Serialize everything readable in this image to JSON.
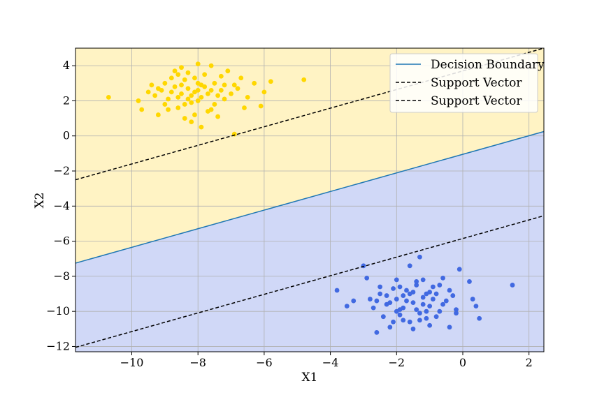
{
  "chart_data": {
    "type": "scatter",
    "xlabel": "X1",
    "ylabel": "X2",
    "xlim": [
      -11.7,
      2.45
    ],
    "ylim": [
      -12.3,
      5.0
    ],
    "xticks": [
      -10,
      -8,
      -6,
      -4,
      -2,
      0,
      2
    ],
    "yticks": [
      -12,
      -10,
      -8,
      -6,
      -4,
      -2,
      0,
      2,
      4
    ],
    "xtick_labels": [
      "−10",
      "−8",
      "−6",
      "−4",
      "−2",
      "0",
      "2"
    ],
    "ytick_labels": [
      "−12",
      "−10",
      "−8",
      "−6",
      "−4",
      "−2",
      "0",
      "2",
      "4"
    ],
    "grid": true,
    "legend_position": "top-right",
    "regions": [
      {
        "side": "above",
        "color": "#fff3c4"
      },
      {
        "side": "below",
        "color": "#d0d8f7"
      }
    ],
    "lines": [
      {
        "label": "Decision Boundary",
        "color": "#1f77b4",
        "style": "solid",
        "x": [
          -11.7,
          2.45
        ],
        "y": [
          -7.25,
          0.25
        ]
      },
      {
        "label": "Support Vector",
        "color": "#000000",
        "style": "dashed",
        "x": [
          -11.7,
          2.45
        ],
        "y": [
          -2.5,
          5.0
        ]
      },
      {
        "label": "Support Vector",
        "color": "#000000",
        "style": "dashed",
        "x": [
          -11.7,
          2.45
        ],
        "y": [
          -12.05,
          -4.55
        ]
      }
    ],
    "series": [
      {
        "color": "#ffd700",
        "points": [
          [
            -8.1,
            2.5
          ],
          [
            -8.3,
            2.7
          ],
          [
            -7.9,
            2.2
          ],
          [
            -8.0,
            3.0
          ],
          [
            -8.5,
            2.4
          ],
          [
            -7.6,
            2.6
          ],
          [
            -8.2,
            1.9
          ],
          [
            -8.7,
            2.8
          ],
          [
            -7.4,
            2.3
          ],
          [
            -8.0,
            2.0
          ],
          [
            -8.4,
            3.2
          ],
          [
            -7.8,
            3.5
          ],
          [
            -8.9,
            2.1
          ],
          [
            -9.1,
            2.6
          ],
          [
            -7.2,
            2.9
          ],
          [
            -8.6,
            1.6
          ],
          [
            -7.5,
            1.8
          ],
          [
            -8.3,
            3.6
          ],
          [
            -7.0,
            2.4
          ],
          [
            -9.3,
            2.3
          ],
          [
            -8.8,
            3.3
          ],
          [
            -7.7,
            1.4
          ],
          [
            -8.1,
            1.2
          ],
          [
            -9.0,
            1.8
          ],
          [
            -7.3,
            3.4
          ],
          [
            -8.5,
            3.9
          ],
          [
            -7.6,
            4.0
          ],
          [
            -6.8,
            2.7
          ],
          [
            -9.4,
            2.9
          ],
          [
            -8.2,
            0.8
          ],
          [
            -7.9,
            0.5
          ],
          [
            -6.5,
            2.2
          ],
          [
            -6.3,
            3.0
          ],
          [
            -6.6,
            1.6
          ],
          [
            -9.7,
            1.5
          ],
          [
            -9.2,
            1.2
          ],
          [
            -10.7,
            2.2
          ],
          [
            -5.8,
            3.1
          ],
          [
            -4.8,
            3.2
          ],
          [
            -6.9,
            0.1
          ],
          [
            -6.1,
            1.7
          ],
          [
            -8.0,
            4.1
          ],
          [
            -8.7,
            3.7
          ],
          [
            -9.5,
            2.5
          ],
          [
            -7.1,
            3.7
          ],
          [
            -6.7,
            3.3
          ],
          [
            -6.0,
            2.5
          ],
          [
            -7.4,
            1.1
          ],
          [
            -8.4,
            1.0
          ],
          [
            -9.8,
            2.0
          ],
          [
            -8.6,
            2.2
          ],
          [
            -7.8,
            2.8
          ],
          [
            -8.0,
            2.6
          ],
          [
            -8.2,
            2.3
          ],
          [
            -7.9,
            2.9
          ],
          [
            -8.1,
            3.3
          ],
          [
            -8.3,
            2.1
          ],
          [
            -7.7,
            2.4
          ],
          [
            -8.5,
            2.9
          ],
          [
            -7.5,
            3.0
          ],
          [
            -8.8,
            2.5
          ],
          [
            -9.0,
            3.0
          ],
          [
            -7.2,
            2.1
          ],
          [
            -8.9,
            1.5
          ],
          [
            -7.6,
            1.5
          ],
          [
            -8.4,
            1.8
          ],
          [
            -7.3,
            2.6
          ],
          [
            -9.2,
            2.7
          ],
          [
            -6.9,
            2.9
          ],
          [
            -8.6,
            3.5
          ]
        ]
      },
      {
        "color": "#4169e1",
        "points": [
          [
            -1.5,
            -9.5
          ],
          [
            -1.2,
            -9.2
          ],
          [
            -1.8,
            -9.8
          ],
          [
            -1.0,
            -9.7
          ],
          [
            -2.0,
            -9.3
          ],
          [
            -1.3,
            -10.1
          ],
          [
            -0.8,
            -9.0
          ],
          [
            -1.7,
            -8.8
          ],
          [
            -2.3,
            -9.6
          ],
          [
            -1.1,
            -10.4
          ],
          [
            -0.5,
            -9.4
          ],
          [
            -1.9,
            -10.2
          ],
          [
            -2.5,
            -9.0
          ],
          [
            -1.4,
            -8.5
          ],
          [
            -0.7,
            -10.0
          ],
          [
            -2.1,
            -8.7
          ],
          [
            -1.6,
            -10.6
          ],
          [
            -0.3,
            -9.1
          ],
          [
            -2.7,
            -9.8
          ],
          [
            -1.2,
            -8.2
          ],
          [
            -0.9,
            -8.6
          ],
          [
            -1.8,
            -9.1
          ],
          [
            -2.4,
            -10.3
          ],
          [
            -1.0,
            -10.8
          ],
          [
            -0.2,
            -9.9
          ],
          [
            -2.9,
            -8.1
          ],
          [
            -3.0,
            -7.4
          ],
          [
            -3.5,
            -9.7
          ],
          [
            -3.8,
            -8.8
          ],
          [
            -2.6,
            -11.2
          ],
          [
            -1.3,
            -6.9
          ],
          [
            -0.1,
            -7.6
          ],
          [
            0.3,
            -9.3
          ],
          [
            0.5,
            -10.4
          ],
          [
            1.5,
            -8.5
          ],
          [
            -0.4,
            -10.9
          ],
          [
            -2.2,
            -10.9
          ],
          [
            -1.5,
            -11.0
          ],
          [
            -0.6,
            -8.1
          ],
          [
            0.2,
            -8.3
          ],
          [
            -1.6,
            -7.4
          ],
          [
            -2.0,
            -8.2
          ],
          [
            -2.8,
            -9.3
          ],
          [
            -3.3,
            -9.4
          ],
          [
            0.4,
            -9.7
          ],
          [
            -1.1,
            -9.0
          ],
          [
            -1.4,
            -9.9
          ],
          [
            -1.7,
            -9.4
          ],
          [
            -1.9,
            -9.9
          ],
          [
            -1.2,
            -9.6
          ],
          [
            -0.9,
            -9.3
          ],
          [
            -1.5,
            -8.9
          ],
          [
            -2.2,
            -9.5
          ],
          [
            -0.6,
            -9.6
          ],
          [
            -1.8,
            -10.5
          ],
          [
            -2.5,
            -8.6
          ],
          [
            -0.4,
            -8.8
          ],
          [
            -1.3,
            -10.5
          ],
          [
            -2.0,
            -10.0
          ],
          [
            -1.6,
            -9.0
          ],
          [
            -0.8,
            -10.3
          ],
          [
            -2.3,
            -9.1
          ],
          [
            -1.0,
            -8.9
          ],
          [
            -0.2,
            -10.1
          ],
          [
            -2.6,
            -9.4
          ],
          [
            -1.4,
            -8.3
          ],
          [
            -0.7,
            -8.5
          ],
          [
            -1.9,
            -8.6
          ],
          [
            -1.1,
            -10.0
          ],
          [
            -2.1,
            -10.6
          ]
        ]
      }
    ],
    "legend": [
      {
        "label": "Decision Boundary",
        "color": "#1f77b4",
        "style": "solid"
      },
      {
        "label": "Support Vector",
        "color": "#000000",
        "style": "dashed"
      },
      {
        "label": "Support Vector",
        "color": "#000000",
        "style": "dashed"
      }
    ]
  }
}
